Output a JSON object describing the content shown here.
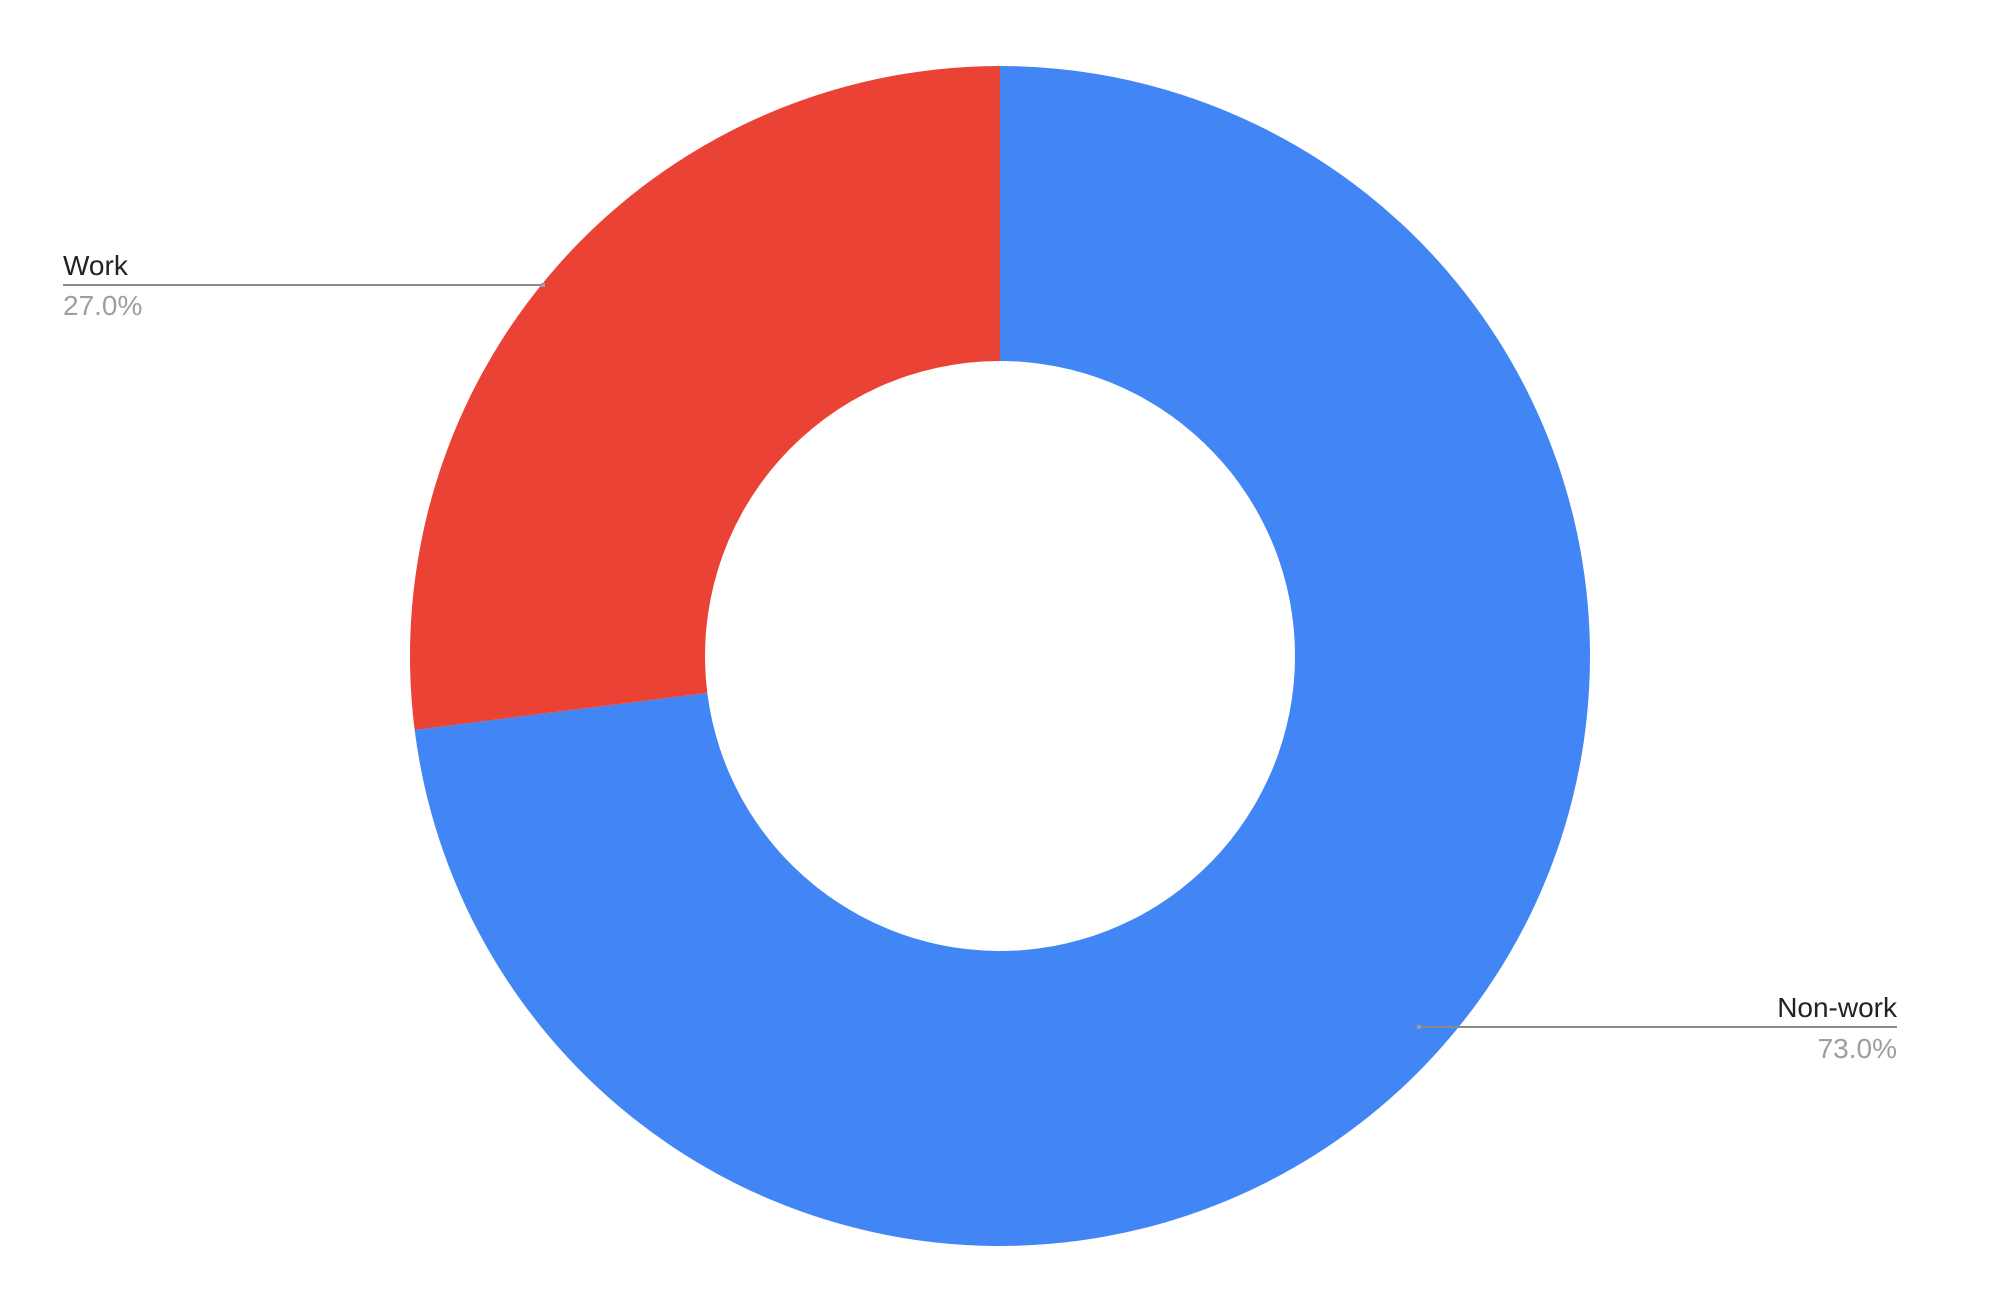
{
  "chart_data": {
    "type": "pie",
    "donut": true,
    "categories": [
      "Work",
      "Non-work"
    ],
    "values": [
      27.0,
      73.0
    ],
    "labels": [
      "27.0%",
      "73.0%"
    ],
    "colors": [
      "#EA4335",
      "#4285F4"
    ],
    "legend": "labels with leader lines"
  }
}
